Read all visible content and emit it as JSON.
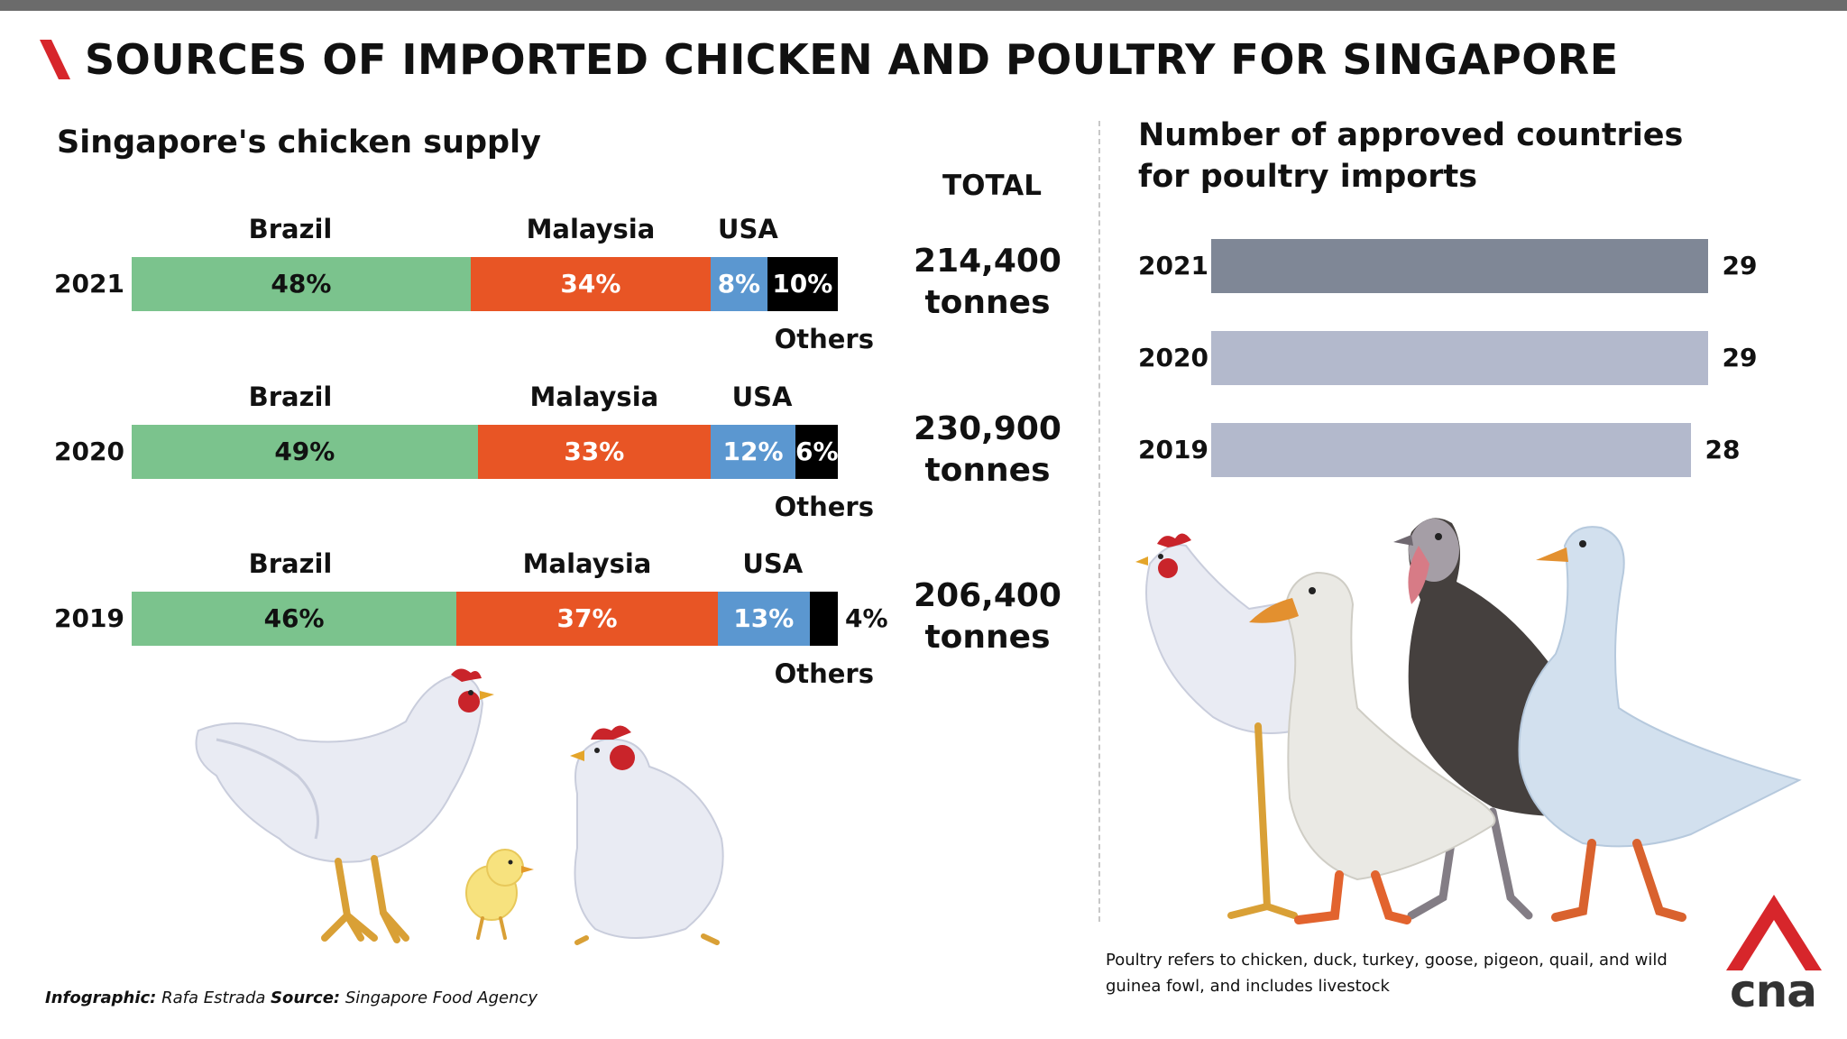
{
  "title": "SOURCES OF IMPORTED CHICKEN AND POULTRY FOR SINGAPORE",
  "colors": {
    "brazil": "#7bc38d",
    "malaysia": "#e85525",
    "usa": "#5b97d0",
    "others": "#000000",
    "bar2021": "#7f8796",
    "barPast": "#b3b9cc",
    "accent": "#d7262b"
  },
  "chart_data": [
    {
      "type": "bar",
      "stacked": true,
      "orientation": "horizontal",
      "title": "Singapore's chicken supply",
      "total_header": "TOTAL",
      "series": [
        {
          "name": "Brazil",
          "color": "#7bc38d"
        },
        {
          "name": "Malaysia",
          "color": "#e85525"
        },
        {
          "name": "USA",
          "color": "#5b97d0"
        },
        {
          "name": "Others",
          "color": "#000000"
        }
      ],
      "rows": [
        {
          "year": "2021",
          "values": [
            48,
            34,
            8,
            10
          ],
          "labels": [
            "48%",
            "34%",
            "8%",
            "10%"
          ],
          "total_value": "214,400",
          "total_unit": "tonnes"
        },
        {
          "year": "2020",
          "values": [
            49,
            33,
            12,
            6
          ],
          "labels": [
            "49%",
            "33%",
            "12%",
            "6%"
          ],
          "total_value": "230,900",
          "total_unit": "tonnes"
        },
        {
          "year": "2019",
          "values": [
            46,
            37,
            13,
            4
          ],
          "labels": [
            "46%",
            "37%",
            "13%",
            "4%"
          ],
          "total_value": "206,400",
          "total_unit": "tonnes"
        }
      ]
    },
    {
      "type": "bar",
      "orientation": "horizontal",
      "title": "Number of approved countries for poultry imports",
      "title_line1": "Number of approved countries",
      "title_line2": "for poultry imports",
      "categories": [
        "2021",
        "2020",
        "2019"
      ],
      "values": [
        29,
        29,
        28
      ],
      "xlim": [
        0,
        29.5
      ]
    }
  ],
  "footer": {
    "infographic_label": "Infographic:",
    "infographic_value": "Rafa Estrada",
    "source_label": "Source:",
    "source_value": "Singapore Food Agency"
  },
  "note": "Poultry refers to chicken, duck, turkey, goose, pigeon, quail, and wild guinea fowl, and includes livestock",
  "logo_text": "cna"
}
